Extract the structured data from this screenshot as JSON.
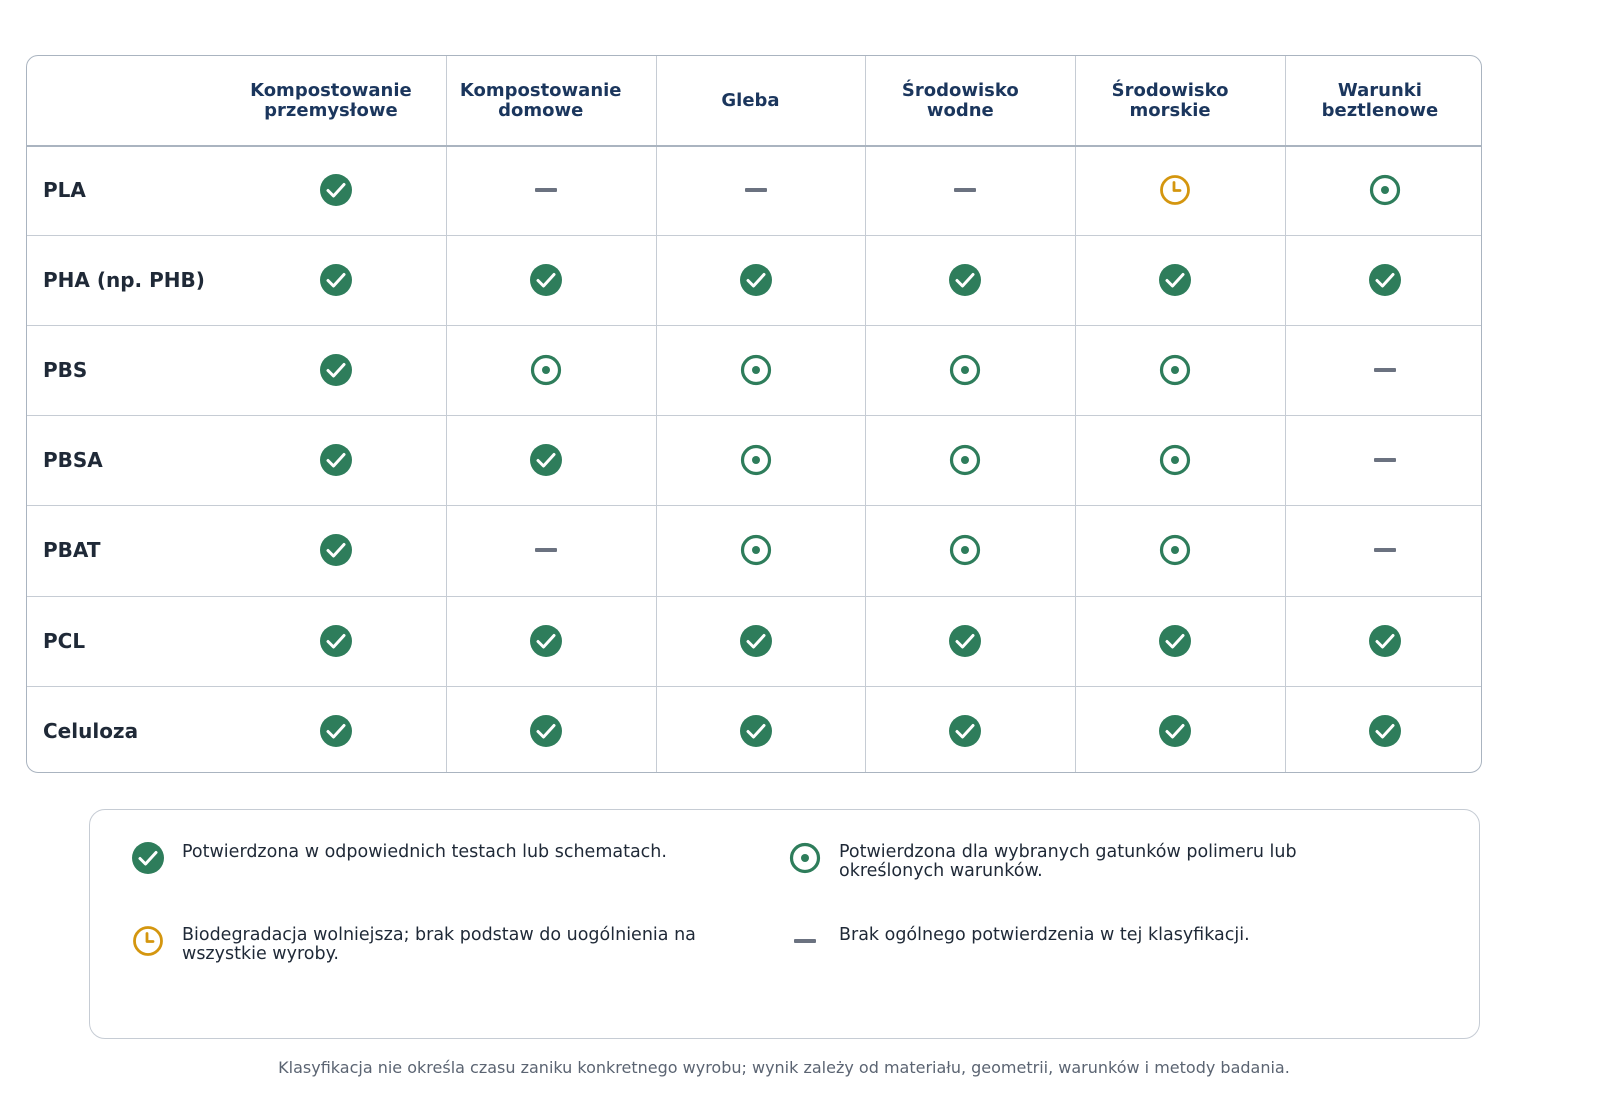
{
  "table": {
    "columns": [
      "Kompostowanie\nprzemysłowe",
      "Kompostowanie\ndomowe",
      "Gleba",
      "Środowisko\nwodne",
      "Środowisko\nmorskie",
      "Warunki\nbeztlenowe"
    ],
    "rows": [
      {
        "label": "PLA"
      },
      {
        "label": "PHA (np. PHB)"
      },
      {
        "label": "PBS"
      },
      {
        "label": "PBSA"
      },
      {
        "label": "PBAT"
      },
      {
        "label": "PCL"
      },
      {
        "label": "Celuloza"
      }
    ]
  },
  "legend": [
    "Potwierdzona w odpowiednich testach lub schematach.",
    "Potwierdzona dla wybranych gatunków polimeru lub\nokreślonych warunków.",
    "Biodegradacja wolniejsza; brak podstaw do uogólnienia na\nwszystkie wyroby.",
    "Brak ogólnego potwierdzenia w tej klasyfikacji."
  ],
  "note": "Klasyfikacja nie określa czasu zaniku konkretnego wyrobu; wynik zależy od materiału, geometrii, warunków i metody badania."
}
